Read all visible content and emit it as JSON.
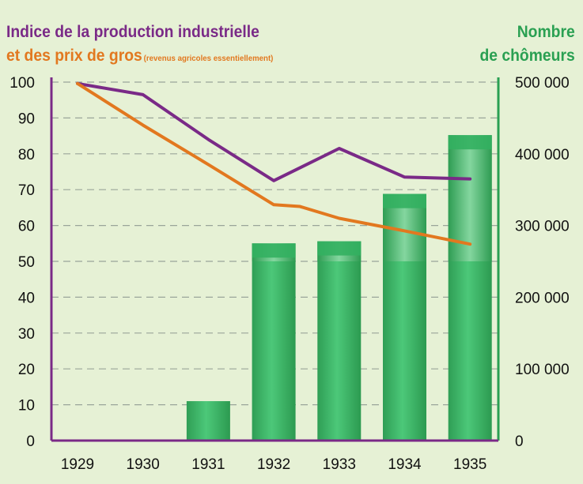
{
  "titles": {
    "left_line1": "Indice de la production industrielle",
    "left_line2": "et des prix de gros",
    "left_note": "(revenus agricoles essentiellement)",
    "right_line1": "Nombre",
    "right_line2": "de chômeurs"
  },
  "colors": {
    "production": "#7a2a87",
    "prix": "#e2781f",
    "chomeurs": "#34b563",
    "background": "#e6f1d5"
  },
  "chart_data": {
    "type": "bar+line",
    "categories": [
      "1929",
      "1930",
      "1931",
      "1932",
      "1933",
      "1934",
      "1935"
    ],
    "y_left": {
      "ylim": [
        0,
        100
      ],
      "ticks": [
        "0",
        "10",
        "20",
        "30",
        "40",
        "50",
        "60",
        "70",
        "80",
        "90",
        "100"
      ]
    },
    "y_right": {
      "ylim": [
        0,
        500000
      ],
      "ticks": [
        "0",
        "100 000",
        "200 000",
        "300 000",
        "400 000",
        "500 000"
      ]
    },
    "bars": {
      "axis": "right",
      "x": [
        1929,
        1930,
        1931,
        1932,
        1933,
        1934,
        1935
      ],
      "values": [
        0,
        0,
        55000,
        275000,
        278000,
        344000,
        426000
      ]
    },
    "series": [
      {
        "axis": "left",
        "x": [
          1929,
          1930,
          1931,
          1932,
          1933,
          1934,
          1935
        ],
        "values": [
          99.6,
          96.5,
          84,
          72.5,
          81.5,
          73.5,
          73
        ]
      },
      {
        "axis": "left",
        "x": [
          1929,
          1930,
          1931,
          1932,
          1932.4,
          1933,
          1934,
          1935
        ],
        "values": [
          99.6,
          88,
          77,
          65.8,
          65.3,
          62,
          58.5,
          54.8
        ]
      }
    ],
    "grid": true
  }
}
